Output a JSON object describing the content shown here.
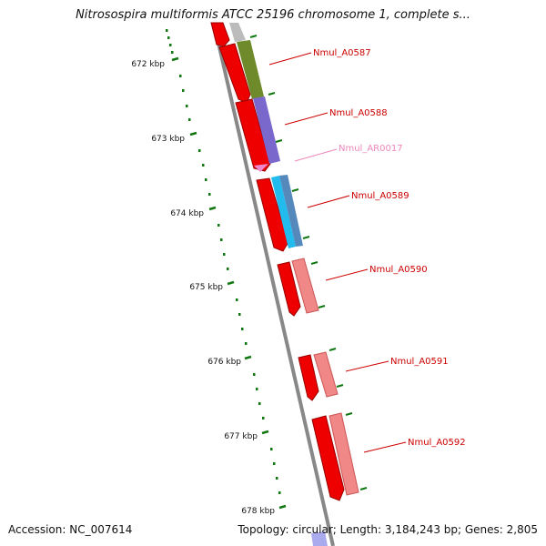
{
  "header": {
    "title": "Nitrosospira multiformis ATCC 25196 chromosome 1, complete s..."
  },
  "footer": {
    "accession": "Accession: NC_007614",
    "summary": "Topology: circular; Length: 3,184,243 bp; Genes: 2,805"
  },
  "ruler": {
    "tick_labels": [
      "672 kbp",
      "673 kbp",
      "674 kbp",
      "675 kbp",
      "676 kbp",
      "677 kbp",
      "678 kbp"
    ],
    "color": "#117711"
  },
  "genes": [
    {
      "label": "Nmul_A0587",
      "color": "#cc0000"
    },
    {
      "label": "Nmul_A0588",
      "color": "#cc0000"
    },
    {
      "label": "Nmul_AR0017",
      "color": "#ee88bb"
    },
    {
      "label": "Nmul_A0589",
      "color": "#cc0000"
    },
    {
      "label": "Nmul_A0590",
      "color": "#cc0000"
    },
    {
      "label": "Nmul_A0591",
      "color": "#cc0000"
    },
    {
      "label": "Nmul_A0592",
      "color": "#cc0000"
    }
  ],
  "colors": {
    "backbone": "#888888",
    "cds": "#ee0000",
    "gene_olive": "#6e8a2a",
    "gene_purple": "#7a68cc",
    "gene_cyan": "#22bbee",
    "gene_steel": "#5588bb",
    "gene_salmon": "#f08888",
    "trna": "#ee88cc"
  }
}
